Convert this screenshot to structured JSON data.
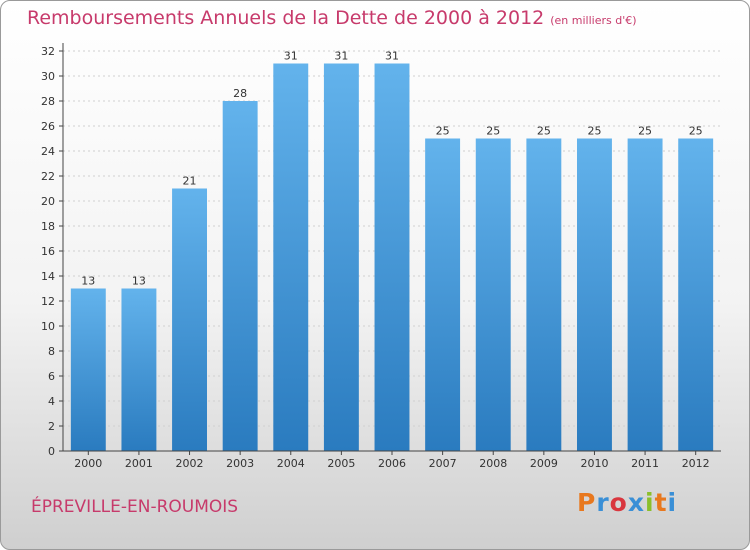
{
  "header": {
    "title": "Remboursements Annuels de la Dette de 2000 à 2012",
    "subtitle": "(en milliers d'€)"
  },
  "footer": {
    "commune": "ÉPREVILLE-EN-ROUMOIS",
    "logo": "Proxiti",
    "logo_colors": [
      "#e8781e",
      "#3a8fd6",
      "#d9363e",
      "#3a8fd6",
      "#8bbf2a",
      "#e8781e",
      "#3a8fd6"
    ]
  },
  "colors": {
    "bar_top": "#63b3ec",
    "bar_bottom": "#2a7bbf",
    "axis": "#444444",
    "grid": "#d0d0d0",
    "title": "#c73a6b"
  },
  "chart_data": {
    "type": "bar",
    "title": "Remboursements Annuels de la Dette de 2000 à 2012",
    "subtitle": "(en milliers d'€)",
    "categories": [
      "2000",
      "2001",
      "2002",
      "2003",
      "2004",
      "2005",
      "2006",
      "2007",
      "2008",
      "2009",
      "2010",
      "2011",
      "2012"
    ],
    "values": [
      13,
      13,
      21,
      28,
      31,
      31,
      31,
      25,
      25,
      25,
      25,
      25,
      25
    ],
    "data_labels": [
      "13",
      "13",
      "21",
      "28",
      "31",
      "31",
      "31",
      "25",
      "25",
      "25",
      "25",
      "25",
      "25"
    ],
    "ylim": [
      0,
      32
    ],
    "yticks": [
      0,
      2,
      4,
      6,
      8,
      10,
      12,
      14,
      16,
      18,
      20,
      22,
      24,
      26,
      28,
      30,
      32
    ],
    "grid": true,
    "legend": "none"
  }
}
